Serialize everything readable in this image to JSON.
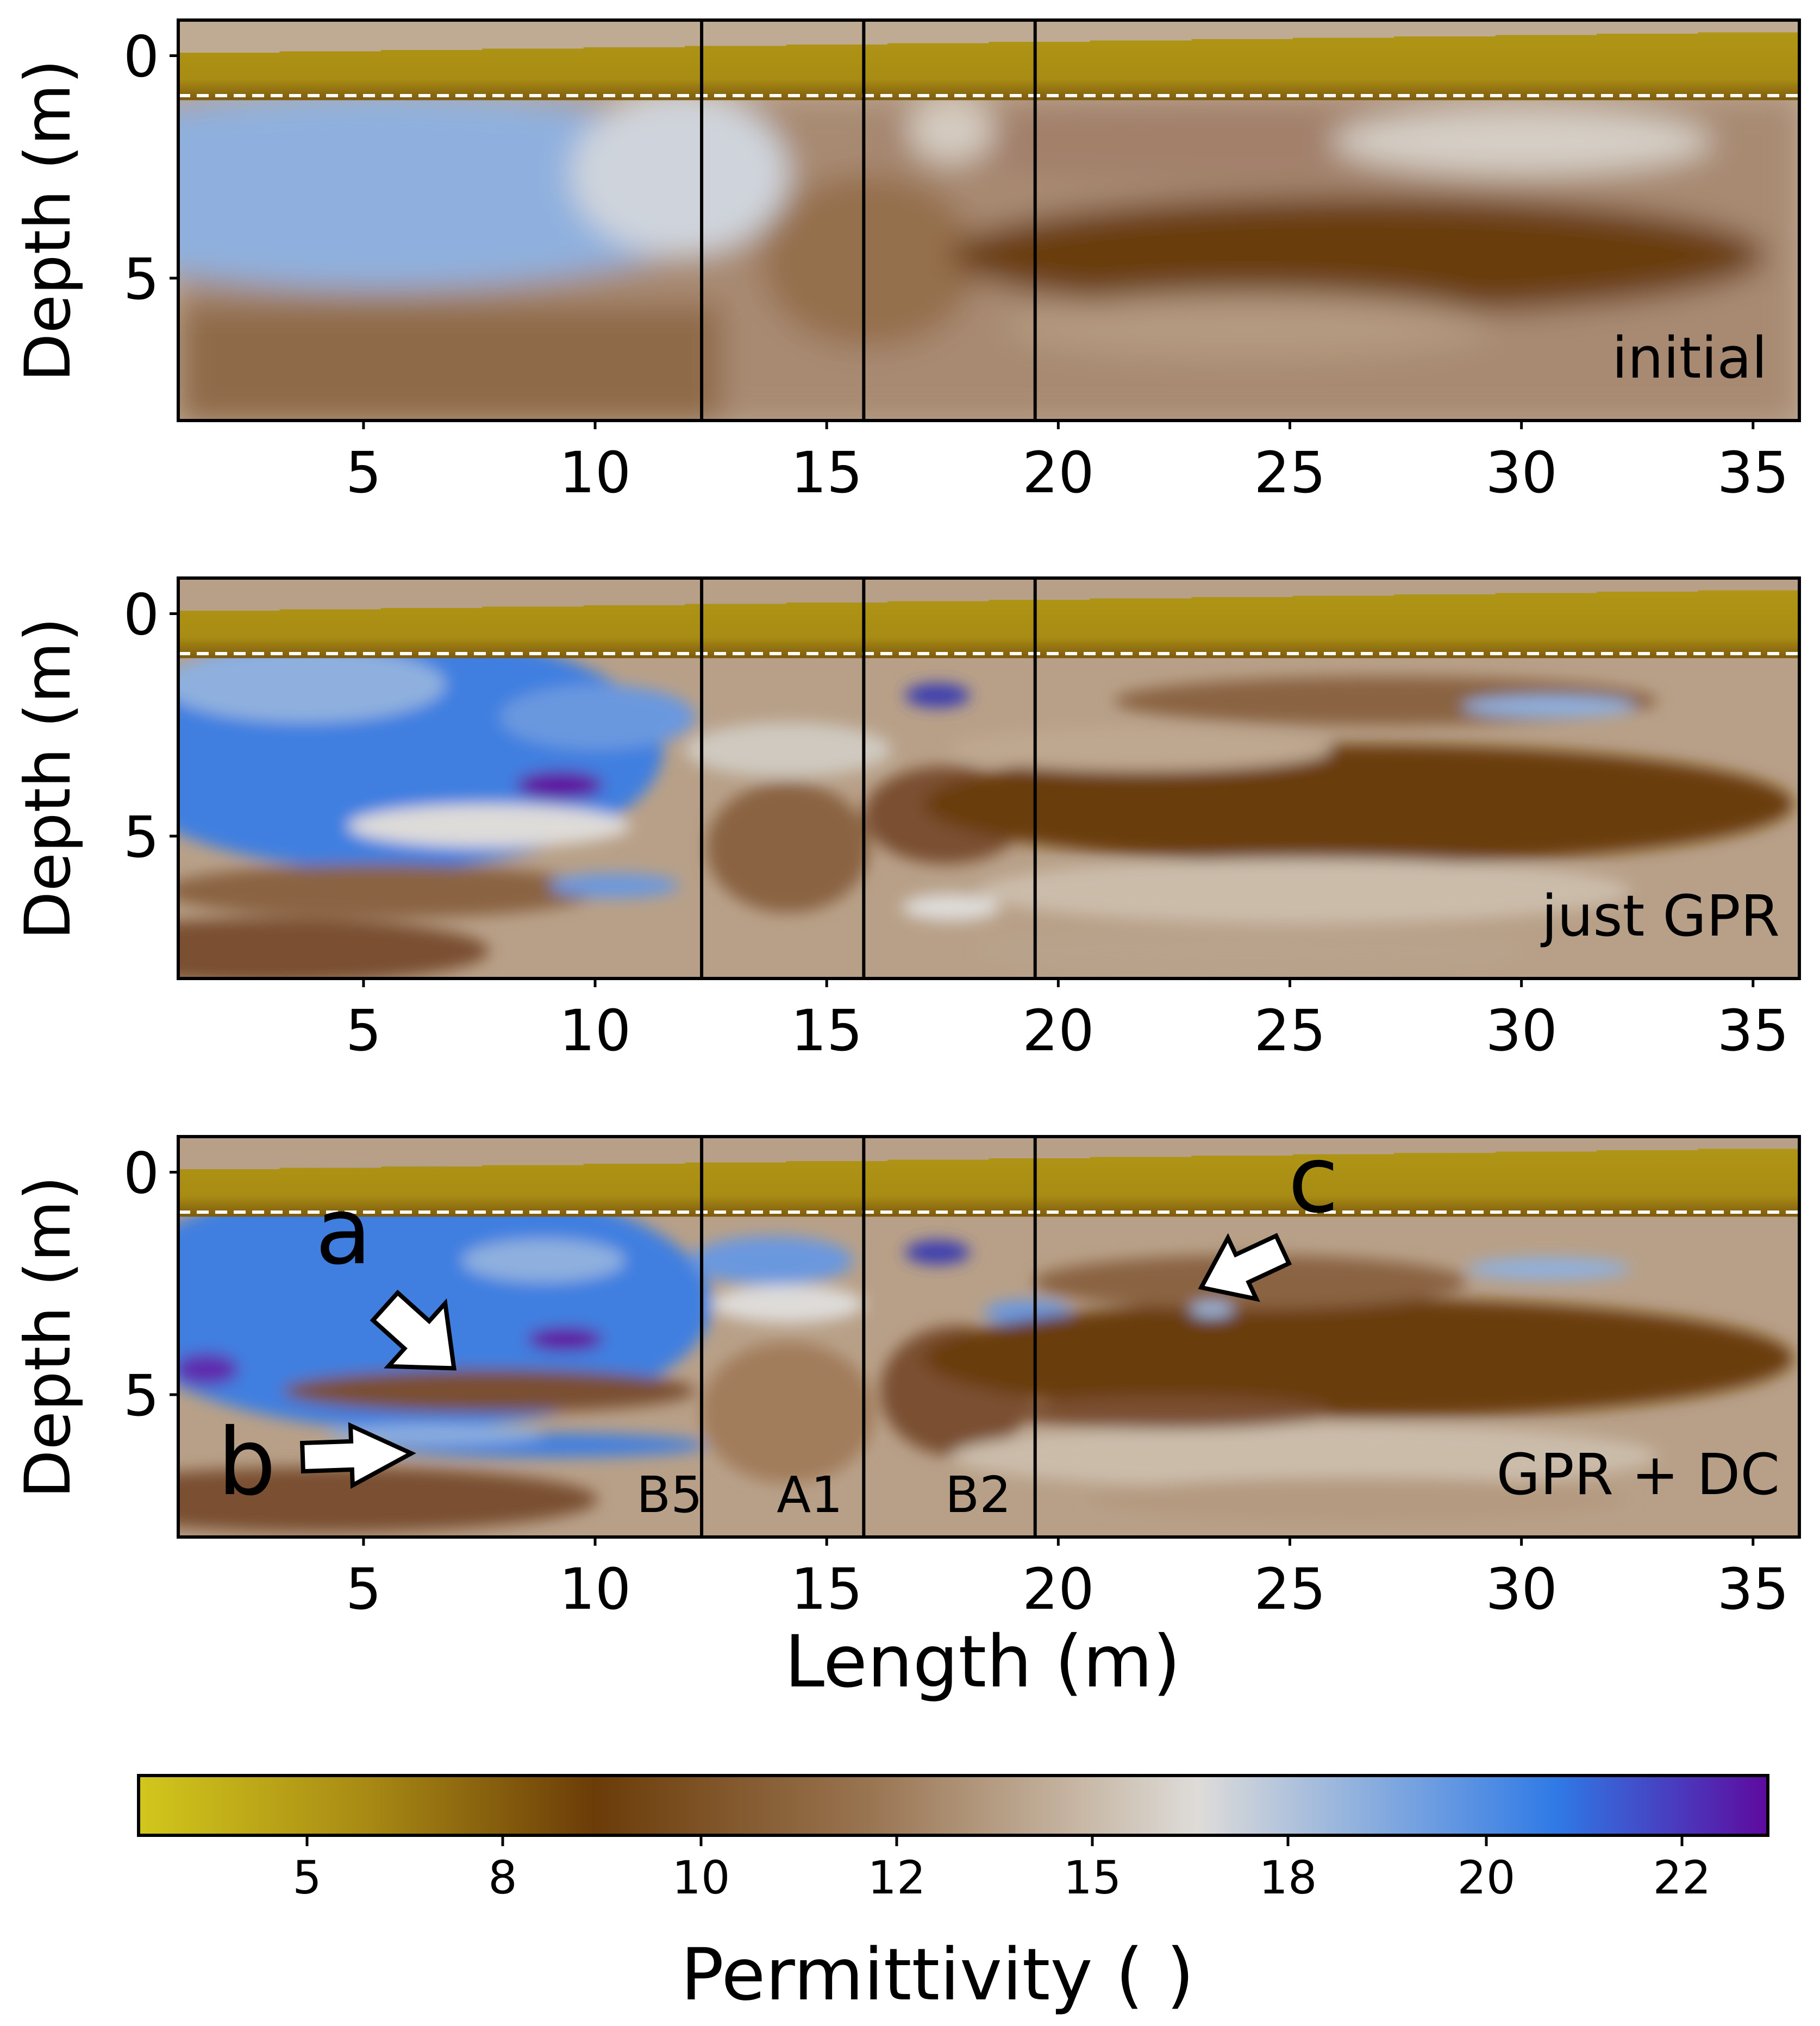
{
  "figure": {
    "xlabel": "Length (m)",
    "ylabel": "Depth (m)",
    "colorbar_label": "Permittivity ( )"
  },
  "colors": {
    "soil_top": "#b59d14",
    "brown_dark": "#6b3c08",
    "brown_mid": "#9a7552",
    "tan": "#bfaa94",
    "light_grey": "#dedcd9",
    "blue_light": "#8fb0de",
    "blue": "#3f7fe0",
    "purple": "#5e0a9e",
    "boundary_line": "#000000",
    "water_table_dash": "#ffffff"
  },
  "chart_data": [
    {
      "type": "heatmap",
      "panel_label": "initial",
      "xlim": [
        1,
        36
      ],
      "ylim": [
        8.2,
        -0.8
      ],
      "xticks": [
        5,
        10,
        15,
        20,
        25,
        30,
        35
      ],
      "yticks": [
        0,
        5
      ],
      "borehole_lines_x": [
        12.3,
        15.8,
        19.5
      ],
      "water_table_depth": 1.0,
      "annotations": []
    },
    {
      "type": "heatmap",
      "panel_label": "just GPR",
      "xlim": [
        1,
        36
      ],
      "ylim": [
        8.2,
        -0.8
      ],
      "xticks": [
        5,
        10,
        15,
        20,
        25,
        30,
        35
      ],
      "yticks": [
        0,
        5
      ],
      "borehole_lines_x": [
        12.3,
        15.8,
        19.5
      ],
      "water_table_depth": 1.0,
      "annotations": []
    },
    {
      "type": "heatmap",
      "panel_label": "GPR + DC",
      "xlim": [
        1,
        36
      ],
      "ylim": [
        8.2,
        -0.8
      ],
      "xticks": [
        5,
        10,
        15,
        20,
        25,
        30,
        35
      ],
      "yticks": [
        0,
        5
      ],
      "borehole_lines_x": [
        12.3,
        15.8,
        19.5
      ],
      "water_table_depth": 1.0,
      "annotations": [
        "a",
        "b",
        "c"
      ],
      "borehole_labels": [
        "B5",
        "A1",
        "B2"
      ]
    }
  ],
  "colorbar": {
    "ticks": [
      "5",
      "8",
      "10",
      "12",
      "15",
      "18",
      "20",
      "22"
    ],
    "stops": [
      {
        "offset": 0.0,
        "color": "#d2c71c"
      },
      {
        "offset": 0.14,
        "color": "#a88a14"
      },
      {
        "offset": 0.28,
        "color": "#6b3c08"
      },
      {
        "offset": 0.45,
        "color": "#9a7552"
      },
      {
        "offset": 0.58,
        "color": "#c8b8a6"
      },
      {
        "offset": 0.65,
        "color": "#dedcd9"
      },
      {
        "offset": 0.75,
        "color": "#8fb0de"
      },
      {
        "offset": 0.87,
        "color": "#2f7ae6"
      },
      {
        "offset": 1.0,
        "color": "#5e0a9e"
      }
    ]
  }
}
